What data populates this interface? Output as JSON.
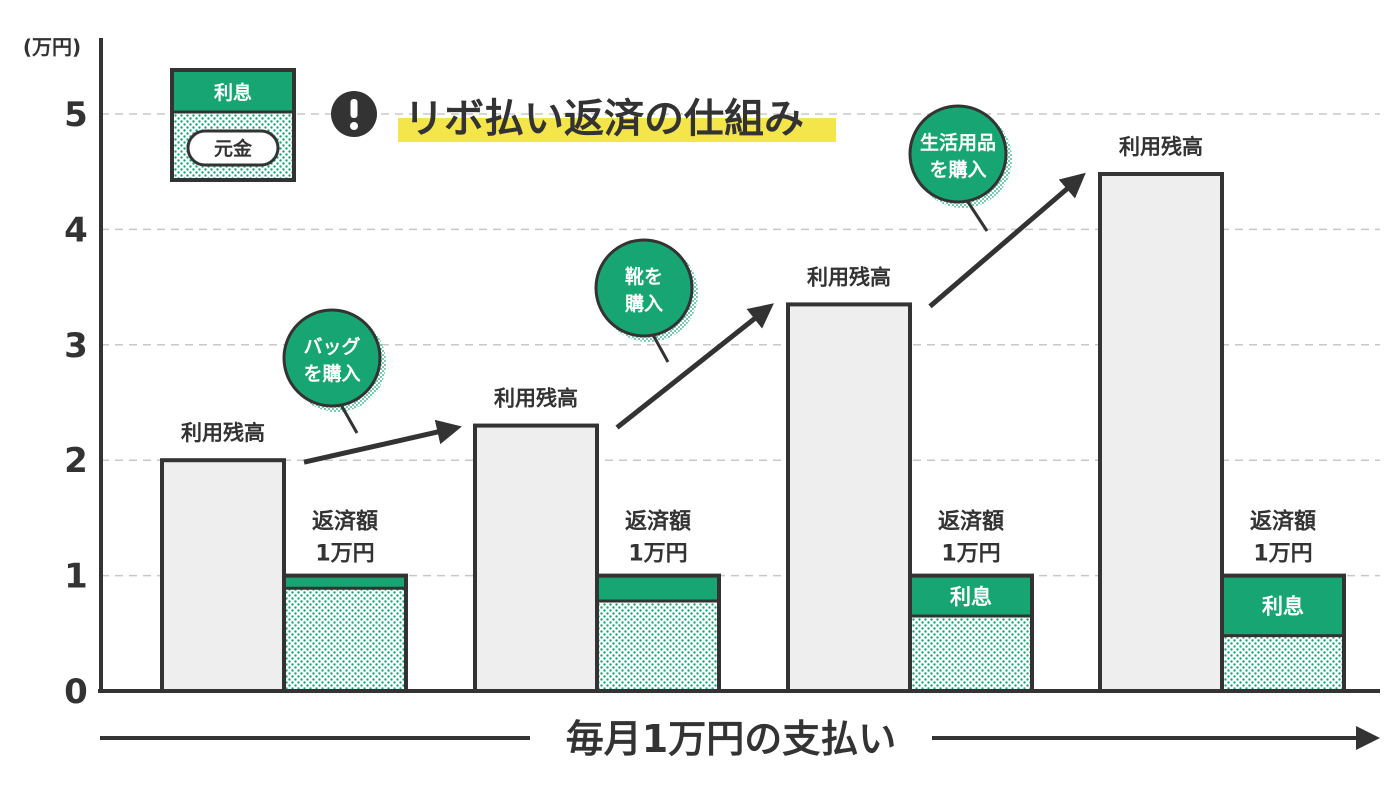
{
  "title": "リボ払い返済の仕組み",
  "colors": {
    "interest": "#17a673",
    "principal_dot": "#17a673",
    "balance_fill": "#eeeeee",
    "outline": "#333333",
    "title_highlight": "#f3e54a"
  },
  "legend": {
    "interest_label": "利息",
    "principal_label": "元金",
    "alert_icon": "exclamation-circle-icon"
  },
  "chart_data": {
    "type": "bar",
    "ylabel": "(万円)",
    "xlabel": "毎月1万円の支払い",
    "ylim": [
      0,
      5
    ],
    "yticks": [
      "0",
      "1",
      "2",
      "3",
      "4",
      "5"
    ],
    "grid": true,
    "groups": [
      {
        "balance": 2.0,
        "balance_label": "利用残高",
        "payment_total": 1.0,
        "payment_label": "返済額",
        "payment_amount_label": "1万円",
        "principal": 0.89,
        "interest": 0.11,
        "interest_label": ""
      },
      {
        "balance": 2.3,
        "balance_label": "利用残高",
        "payment_total": 1.0,
        "payment_label": "返済額",
        "payment_amount_label": "1万円",
        "principal": 0.78,
        "interest": 0.22,
        "interest_label": ""
      },
      {
        "balance": 3.35,
        "balance_label": "利用残高",
        "payment_total": 1.0,
        "payment_label": "返済額",
        "payment_amount_label": "1万円",
        "principal": 0.65,
        "interest": 0.35,
        "interest_label": "利息"
      },
      {
        "balance": 4.48,
        "balance_label": "利用残高",
        "payment_total": 1.0,
        "payment_label": "返済額",
        "payment_amount_label": "1万円",
        "principal": 0.48,
        "interest": 0.52,
        "interest_label": "利息"
      }
    ],
    "purchases": [
      {
        "line1": "バッグ",
        "line2": "を購入"
      },
      {
        "line1": "靴を",
        "line2": "購入"
      },
      {
        "line1": "生活用品",
        "line2": "を購入"
      }
    ]
  }
}
